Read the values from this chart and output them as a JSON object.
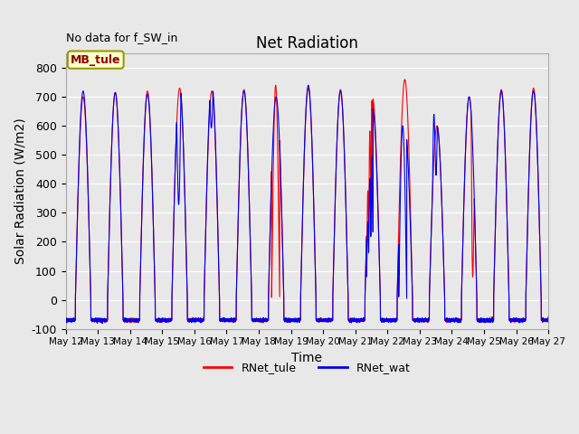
{
  "title": "Net Radiation",
  "xlabel": "Time",
  "ylabel": "Solar Radiation (W/m2)",
  "annotation": "No data for f_SW_in",
  "legend_label": "MB_tule",
  "line1_label": "RNet_tule",
  "line2_label": "RNet_wat",
  "line1_color": "#ff0000",
  "line2_color": "#0000ee",
  "ylim": [
    -100,
    850
  ],
  "yticks": [
    -100,
    0,
    100,
    200,
    300,
    400,
    500,
    600,
    700,
    800
  ],
  "plot_bg_color": "#e8e8e8",
  "fig_bg_color": "#e8e8e8",
  "days": 15,
  "start_day": 12,
  "end_day": 27,
  "points_per_day": 480
}
